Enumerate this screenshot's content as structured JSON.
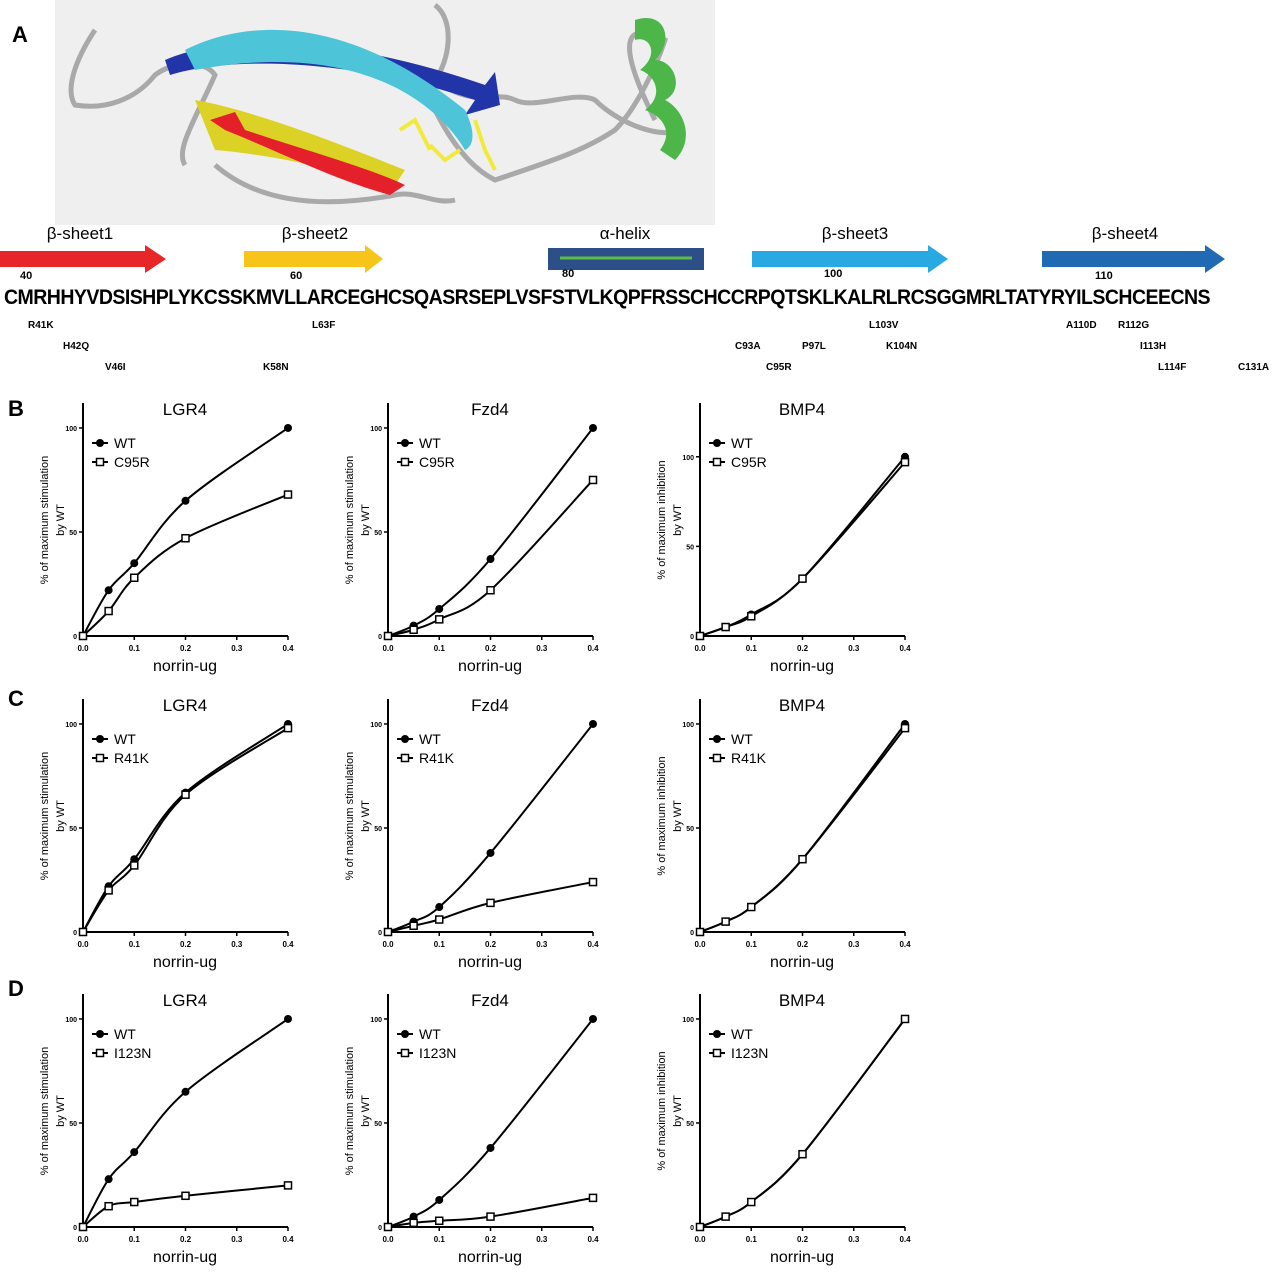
{
  "panel_labels": [
    "A",
    "B",
    "C",
    "D"
  ],
  "structure": {
    "elements": [
      {
        "label": "β-sheet1",
        "color": "#e8262a"
      },
      {
        "label": "β-sheet2",
        "color": "#f7c51a"
      },
      {
        "label": "α-helix",
        "color": "#2c4f88"
      },
      {
        "label": "β-sheet3",
        "color": "#29a9e1"
      },
      {
        "label": "β-sheet4",
        "color": "#1f6ab3"
      }
    ],
    "sequence": "CMRHHYVDSISHPLYKCSSKMVLLARCEGHCSQASRSEPLVSFSTVLKQPFRSSCHCCRPQTSKLKALRLRCSGGMRLTATYRYILSCHCEECNS",
    "residue_numbers": [
      "40",
      "60",
      "80",
      "100",
      "110"
    ],
    "mutations": [
      "R41K",
      "H42Q",
      "V46I",
      "K58N",
      "L63F",
      "C93A",
      "C95R",
      "P97L",
      "L103V",
      "K104N",
      "A110D",
      "R112G",
      "I113H",
      "L114F",
      "C131A"
    ]
  },
  "chart_data": [
    {
      "type": "line",
      "row": "B",
      "title": "LGR4",
      "ylabel": "% of maximum stimulation by WT",
      "xlabel": "norrin-ug",
      "x": [
        0,
        0.05,
        0.1,
        0.2,
        0.4
      ],
      "xticks": [
        "0.0",
        "0.1",
        "0.2",
        "0.3",
        "0.4"
      ],
      "yticks": [
        "0",
        "50",
        "100"
      ],
      "xlim": [
        0,
        0.4
      ],
      "ylim": [
        0,
        112
      ],
      "series": [
        {
          "name": "WT",
          "values": [
            0,
            22,
            35,
            65,
            100
          ]
        },
        {
          "name": "C95R",
          "values": [
            0,
            12,
            28,
            47,
            68
          ]
        }
      ]
    },
    {
      "type": "line",
      "row": "B",
      "title": "Fzd4",
      "ylabel": "% of maximum stimulation by WT",
      "xlabel": "norrin-ug",
      "x": [
        0,
        0.05,
        0.1,
        0.2,
        0.4
      ],
      "xticks": [
        "0.0",
        "0.1",
        "0.2",
        "0.3",
        "0.4"
      ],
      "yticks": [
        "0",
        "50",
        "100"
      ],
      "xlim": [
        0,
        0.4
      ],
      "ylim": [
        0,
        112
      ],
      "series": [
        {
          "name": "WT",
          "values": [
            0,
            5,
            13,
            37,
            100
          ]
        },
        {
          "name": "C95R",
          "values": [
            0,
            3,
            8,
            22,
            75
          ]
        }
      ]
    },
    {
      "type": "line",
      "row": "B",
      "title": "BMP4",
      "ylabel": "% of maximum inhibition by WT",
      "xlabel": "norrin-ug",
      "x": [
        0,
        0.05,
        0.1,
        0.2,
        0.4
      ],
      "xticks": [
        "0.0",
        "0.1",
        "0.2",
        "0.3",
        "0.4"
      ],
      "yticks": [
        "0",
        "50",
        "100"
      ],
      "xlim": [
        0,
        0.4
      ],
      "ylim": [
        0,
        130
      ],
      "series": [
        {
          "name": "WT",
          "values": [
            0,
            5,
            12,
            32,
            100
          ]
        },
        {
          "name": "C95R",
          "values": [
            0,
            5,
            11,
            32,
            97
          ]
        }
      ]
    },
    {
      "type": "line",
      "row": "C",
      "title": "LGR4",
      "ylabel": "% of maximum stimulation by WT",
      "xlabel": "norrin-ug",
      "x": [
        0,
        0.05,
        0.1,
        0.2,
        0.4
      ],
      "xticks": [
        "0.0",
        "0.1",
        "0.2",
        "0.3",
        "0.4"
      ],
      "yticks": [
        "0",
        "50",
        "100"
      ],
      "xlim": [
        0,
        0.4
      ],
      "ylim": [
        0,
        112
      ],
      "series": [
        {
          "name": "WT",
          "values": [
            0,
            22,
            35,
            67,
            100
          ]
        },
        {
          "name": "R41K",
          "values": [
            0,
            20,
            32,
            66,
            98
          ]
        }
      ]
    },
    {
      "type": "line",
      "row": "C",
      "title": "Fzd4",
      "ylabel": "% of maximum stimulation by WT",
      "xlabel": "norrin-ug",
      "x": [
        0,
        0.05,
        0.1,
        0.2,
        0.4
      ],
      "xticks": [
        "0.0",
        "0.1",
        "0.2",
        "0.3",
        "0.4"
      ],
      "yticks": [
        "0",
        "50",
        "100"
      ],
      "xlim": [
        0,
        0.4
      ],
      "ylim": [
        0,
        112
      ],
      "series": [
        {
          "name": "WT",
          "values": [
            0,
            5,
            12,
            38,
            100
          ]
        },
        {
          "name": "R41K",
          "values": [
            0,
            3,
            6,
            14,
            24
          ]
        }
      ]
    },
    {
      "type": "line",
      "row": "C",
      "title": "BMP4",
      "ylabel": "% of maximum inhibition by WT",
      "xlabel": "norrin-ug",
      "x": [
        0,
        0.05,
        0.1,
        0.2,
        0.4
      ],
      "xticks": [
        "0.0",
        "0.1",
        "0.2",
        "0.3",
        "0.4"
      ],
      "yticks": [
        "0",
        "50",
        "100"
      ],
      "xlim": [
        0,
        0.4
      ],
      "ylim": [
        0,
        112
      ],
      "series": [
        {
          "name": "WT",
          "values": [
            0,
            5,
            12,
            35,
            100
          ]
        },
        {
          "name": "R41K",
          "values": [
            0,
            5,
            12,
            35,
            98
          ]
        }
      ]
    },
    {
      "type": "line",
      "row": "D",
      "title": "LGR4",
      "ylabel": "% of maximum stimulation by WT",
      "xlabel": "norrin-ug",
      "x": [
        0,
        0.05,
        0.1,
        0.2,
        0.4
      ],
      "xticks": [
        "0.0",
        "0.1",
        "0.2",
        "0.3",
        "0.4"
      ],
      "yticks": [
        "0",
        "50",
        "100"
      ],
      "xlim": [
        0,
        0.4
      ],
      "ylim": [
        0,
        112
      ],
      "series": [
        {
          "name": "WT",
          "values": [
            0,
            23,
            36,
            65,
            100
          ]
        },
        {
          "name": "I123N",
          "values": [
            0,
            10,
            12,
            15,
            20
          ]
        }
      ]
    },
    {
      "type": "line",
      "row": "D",
      "title": "Fzd4",
      "ylabel": "% of maximum stimulation by WT",
      "xlabel": "norrin-ug",
      "x": [
        0,
        0.05,
        0.1,
        0.2,
        0.4
      ],
      "xticks": [
        "0.0",
        "0.1",
        "0.2",
        "0.3",
        "0.4"
      ],
      "yticks": [
        "0",
        "50",
        "100"
      ],
      "xlim": [
        0,
        0.4
      ],
      "ylim": [
        0,
        112
      ],
      "series": [
        {
          "name": "WT",
          "values": [
            0,
            5,
            13,
            38,
            100
          ]
        },
        {
          "name": "I123N",
          "values": [
            0,
            2,
            3,
            5,
            14
          ]
        }
      ]
    },
    {
      "type": "line",
      "row": "D",
      "title": "BMP4",
      "ylabel": "% of maximum inhibition by WT",
      "xlabel": "norrin-ug",
      "x": [
        0,
        0.05,
        0.1,
        0.2,
        0.4
      ],
      "xticks": [
        "0.0",
        "0.1",
        "0.2",
        "0.3",
        "0.4"
      ],
      "yticks": [
        "0",
        "50",
        "100"
      ],
      "xlim": [
        0,
        0.4
      ],
      "ylim": [
        0,
        112
      ],
      "series": [
        {
          "name": "WT",
          "values": [
            0,
            5,
            12,
            35,
            100
          ]
        },
        {
          "name": "I123N",
          "values": [
            0,
            5,
            12,
            35,
            100
          ]
        }
      ]
    }
  ]
}
